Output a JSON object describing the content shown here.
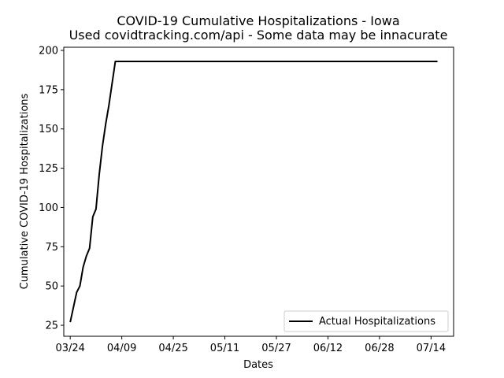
{
  "chart_data": {
    "type": "line",
    "title": "COVID-19 Cumulative Hospitalizations - Iowa",
    "subtitle": "Used covidtracking.com/api - Some data may be innacurate",
    "xlabel": "Dates",
    "ylabel": "Cumulative COVID-19 Hospitalizations",
    "x_ticks": [
      "03/24",
      "04/09",
      "04/25",
      "05/11",
      "05/27",
      "06/12",
      "06/28",
      "07/14"
    ],
    "x_tick_days": [
      0,
      16,
      32,
      48,
      64,
      80,
      96,
      112
    ],
    "xlim_days": [
      -2,
      119
    ],
    "y_ticks": [
      25,
      50,
      75,
      100,
      125,
      150,
      175,
      200
    ],
    "ylim": [
      18,
      202
    ],
    "grid": false,
    "legend": {
      "position": "lower-right",
      "entries": [
        "Actual Hospitalizations"
      ]
    },
    "series": [
      {
        "name": "Actual Hospitalizations",
        "color": "#000000",
        "x_days": [
          0,
          2,
          3,
          4,
          5,
          6,
          7,
          8,
          9,
          10,
          11,
          12,
          13,
          14,
          114
        ],
        "values": [
          27,
          46,
          50,
          62,
          69,
          74,
          94,
          99,
          121,
          139,
          153,
          165,
          179,
          193,
          193
        ]
      }
    ]
  }
}
